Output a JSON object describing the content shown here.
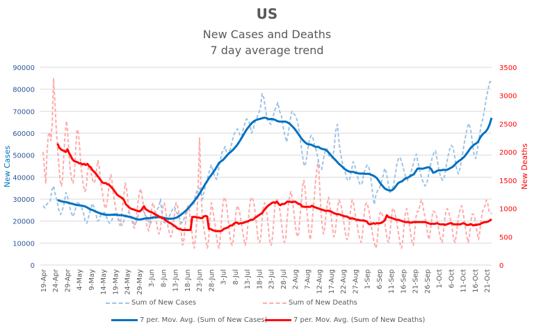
{
  "chart_data": {
    "type": "line",
    "title": "US",
    "subtitle_lines": [
      "New Cases and Deaths",
      "7 day average trend"
    ],
    "xlabel": "",
    "ylabel_left": "New Cases",
    "ylabel_right": "New Deaths",
    "ylim_left": [
      0,
      90000
    ],
    "ylim_right": [
      0,
      3500
    ],
    "yticks_left": [
      0,
      10000,
      20000,
      30000,
      40000,
      50000,
      60000,
      70000,
      80000,
      90000
    ],
    "yticks_right": [
      0,
      500,
      1000,
      1500,
      2000,
      2500,
      3000,
      3500
    ],
    "grid": true,
    "legend_position": "bottom",
    "x_start": "19-Apr",
    "x_tick_labels": [
      "19-Apr",
      "24-Apr",
      "29-Apr",
      "4-May",
      "9-May",
      "14-May",
      "19-May",
      "24-May",
      "29-May",
      "3-Jun",
      "8-Jun",
      "13-Jun",
      "18-Jun",
      "23-Jun",
      "28-Jun",
      "3-Jul",
      "8-Jul",
      "13-Jul",
      "18-Jul",
      "23-Jul",
      "28-Jul",
      "2-Aug",
      "7-Aug",
      "12-Aug",
      "17-Aug",
      "22-Aug",
      "27-Aug",
      "1-Sep",
      "6-Sep",
      "11-Sep",
      "16-Sep",
      "21-Sep",
      "26-Sep",
      "1-Oct",
      "6-Oct",
      "11-Oct",
      "16-Oct",
      "21-Oct"
    ],
    "series": [
      {
        "name": "Sum of New Cases",
        "axis": "left",
        "style": "dashed",
        "color": "#9dc3e6",
        "values": [
          27000,
          26000,
          27500,
          28500,
          29000,
          34000,
          36000,
          32000,
          29000,
          25000,
          23000,
          25000,
          28000,
          33000,
          31000,
          27000,
          24000,
          22000,
          24000,
          27500,
          29000,
          27000,
          26000,
          24000,
          20000,
          19000,
          22000,
          25000,
          28000,
          26500,
          24000,
          20000,
          20500,
          23000,
          23500,
          24000,
          22500,
          20000,
          19000,
          20000,
          22000,
          24000,
          23500,
          21000,
          19500,
          18000,
          20000,
          22500,
          23500,
          24000,
          22500,
          20500,
          18500,
          19000,
          22000,
          24000,
          25000,
          25500,
          23000,
          22000,
          20000,
          18500,
          20000,
          22500,
          23000,
          25000,
          26500,
          30000,
          22500,
          19500,
          19000,
          19500,
          22000,
          24000,
          25500,
          26500,
          24000,
          23000,
          20500,
          19000,
          20000,
          22500,
          25000,
          26000,
          27500,
          27500,
          27000,
          32000,
          34000,
          35000,
          34000,
          30000,
          34000,
          37000,
          40000,
          43000,
          45500,
          43000,
          40000,
          39000,
          43000,
          47000,
          51000,
          52500,
          54000,
          50000,
          51500,
          53000,
          56500,
          59500,
          61000,
          62000,
          60000,
          57000,
          61000,
          64000,
          66500,
          66000,
          64000,
          60000,
          62000,
          65500,
          67000,
          69000,
          71000,
          78000,
          76000,
          70500,
          66000,
          65000,
          64000,
          66500,
          70000,
          72000,
          74000,
          70000,
          68000,
          63000,
          59000,
          56000,
          60000,
          66000,
          70000,
          69000,
          68000,
          66000,
          62000,
          56000,
          50000,
          45000,
          46500,
          52000,
          57000,
          59000,
          58000,
          54000,
          52000,
          48000,
          44000,
          43500,
          48000,
          52000,
          53000,
          50000,
          49000,
          48500,
          52000,
          61000,
          64000,
          55000,
          50000,
          46000,
          44000,
          40000,
          38500,
          39000,
          43000,
          47000,
          45000,
          42000,
          38500,
          36500,
          37000,
          41500,
          44000,
          45500,
          44500,
          40000,
          33000,
          27500,
          32000,
          34000,
          35000,
          37500,
          40500,
          44000,
          42000,
          37000,
          33000,
          34000,
          36000,
          41000,
          46000,
          49000,
          48500,
          46000,
          43000,
          40000,
          38500,
          40000,
          42500,
          45000,
          48000,
          50500,
          46500,
          43000,
          40000,
          37500,
          36000,
          37000,
          41000,
          45000,
          48500,
          51000,
          52000,
          47500,
          43000,
          40000,
          38500,
          40000,
          44500,
          49000,
          52500,
          54500,
          53500,
          49000,
          44000,
          41500,
          44000,
          48500,
          53500,
          58000,
          62000,
          64500,
          62000,
          56000,
          50000,
          48500,
          53000,
          58500,
          63500,
          66500,
          71000,
          76000,
          80000,
          83500,
          83500
        ]
      },
      {
        "name": "Sum of New Deaths",
        "axis": "right",
        "style": "dashed",
        "color": "#ffaaaa",
        "values": [
          2000,
          1700,
          1450,
          2000,
          2300,
          2350,
          2200,
          2500,
          3300,
          2900,
          2450,
          2100,
          1800,
          1500,
          1400,
          1550,
          2000,
          2350,
          2550,
          2300,
          1900,
          1650,
          1500,
          1450,
          1600,
          2050,
          2400,
          2350,
          2100,
          1750,
          1550,
          1400,
          1300,
          1350,
          1650,
          1750,
          1700,
          1600,
          1500,
          1450,
          1500,
          1700,
          1850,
          1750,
          1500,
          1350,
          1200,
          1050,
          1000,
          1100,
          1300,
          1500,
          1600,
          1450,
          1250,
          1100,
          950,
          900,
          750,
          700,
          850,
          1050,
          1250,
          1450,
          1350,
          1150,
          900,
          850,
          800,
          700,
          650,
          750,
          950,
          1150,
          1300,
          1350,
          1200,
          1050,
          900,
          800,
          650,
          600,
          750,
          950,
          1100,
          1050,
          900,
          750,
          600,
          550,
          650,
          850,
          1050,
          1100,
          950,
          800,
          650,
          550,
          500,
          550,
          750,
          950,
          1100,
          1050,
          950,
          750,
          550,
          350,
          450,
          700,
          900,
          1050,
          1000,
          800,
          600,
          400,
          300,
          500,
          850,
          1450,
          2250,
          1400,
          900,
          700,
          550,
          400,
          300,
          450,
          800,
          1100,
          1000,
          850,
          700,
          500,
          350,
          300,
          500,
          850,
          1100,
          1200,
          1150,
          1000,
          800,
          550,
          400,
          350,
          450,
          700,
          950,
          1050,
          1000,
          900,
          750,
          600,
          450,
          350,
          450,
          700,
          950,
          1150,
          1200,
          1150,
          1050,
          850,
          650,
          450,
          400,
          500,
          800,
          1050,
          1100,
          1000,
          850,
          600,
          400,
          350,
          500,
          800,
          1100,
          1150,
          1150,
          1050,
          900,
          700,
          500,
          400,
          450,
          750,
          1050,
          1200,
          1300,
          1200,
          1000,
          800,
          600,
          500,
          550,
          850,
          1100,
          1400,
          1500,
          1350,
          1050,
          800,
          550,
          450,
          650,
          950,
          1200,
          1500,
          1700,
          1850,
          1450,
          1000,
          700,
          550,
          650,
          900,
          1100,
          1200,
          1050,
          850,
          650,
          500,
          550,
          800,
          1050,
          1150,
          1100,
          1000,
          850,
          700,
          550,
          450,
          500,
          750,
          1000,
          1150,
          1100,
          950,
          800,
          700,
          550,
          450,
          400,
          550,
          850,
          1050,
          1100,
          1050,
          950,
          800,
          650,
          500,
          400,
          300,
          350,
          650,
          900,
          950,
          900,
          850,
          750,
          600,
          450,
          400,
          550,
          800,
          1000,
          1000,
          900,
          800,
          650,
          500,
          350,
          300,
          450,
          750,
          950,
          1000,
          850,
          700,
          550,
          400,
          350,
          600,
          850,
          950,
          950,
          1050,
          1150,
          1100,
          950,
          850,
          700,
          550,
          450,
          600,
          800,
          950,
          950,
          900,
          850,
          700,
          550,
          450,
          400,
          550,
          800,
          950,
          1000,
          950,
          850,
          750,
          600,
          450,
          400,
          550,
          750,
          900,
          1000,
          1050,
          950,
          800,
          650,
          500,
          400,
          500,
          750,
          900,
          900,
          850,
          700,
          550,
          450,
          600,
          800,
          950,
          1000,
          1050,
          1150,
          1100,
          950,
          950,
          900
        ]
      },
      {
        "name": "7 per. Mov. Avg. (Sum of New Cases)",
        "axis": "left",
        "style": "solid",
        "color": "#0070c0",
        "start_index": 6,
        "values": [
          29500,
          29300,
          29000,
          28800,
          28700,
          28500,
          28200,
          28000,
          27800,
          27500,
          27300,
          27200,
          27100,
          26900,
          26700,
          26300,
          25800,
          25300,
          25000,
          24600,
          24200,
          23800,
          23500,
          23200,
          23000,
          22900,
          22800,
          22800,
          22900,
          22900,
          22900,
          22700,
          22700,
          22700,
          22500,
          22300,
          22100,
          21900,
          21700,
          21400,
          21000,
          20800,
          20700,
          20800,
          21000,
          21200,
          21300,
          21300,
          21400,
          21600,
          21700,
          21700,
          21800,
          21700,
          21500,
          21400,
          21200,
          21100,
          21100,
          21100,
          21300,
          21500,
          22000,
          22600,
          23300,
          24000,
          24800,
          25700,
          26700,
          27800,
          28900,
          30000,
          31200,
          32500,
          34000,
          35500,
          37000,
          38400,
          39800,
          41000,
          42300,
          43500,
          45000,
          46500,
          47200,
          47800,
          48800,
          49800,
          50800,
          51500,
          52300,
          53300,
          54300,
          55600,
          57000,
          58500,
          60000,
          61500,
          62700,
          63800,
          64800,
          65500,
          66000,
          66300,
          66500,
          66800,
          67000,
          67000,
          66600,
          66300,
          66500,
          66300,
          66000,
          65500,
          65300,
          65300,
          65300,
          65300,
          65000,
          64500,
          63700,
          62800,
          61800,
          60600,
          59300,
          58000,
          56900,
          56000,
          55300,
          54900,
          54900,
          54500,
          54000,
          53700,
          53800,
          53200,
          52800,
          52700,
          52300,
          51500,
          50500,
          49500,
          48500,
          47600,
          46600,
          45700,
          45000,
          44100,
          43400,
          42900,
          42500,
          42400,
          42400,
          42000,
          41800,
          41700,
          41600,
          41700,
          41500,
          41500,
          41500,
          41100,
          40800,
          40300,
          39600,
          38400,
          37000,
          36000,
          35000,
          34400,
          34000,
          33900,
          34100,
          34900,
          36100,
          37300,
          37800,
          38100,
          38900,
          39500,
          39800,
          40300,
          40900,
          41200,
          42600,
          43900,
          44000,
          43800,
          43900,
          44200,
          44400,
          44500,
          43600,
          42000,
          42300,
          42900,
          43100,
          43100,
          43300,
          43300,
          43300,
          43700,
          44200,
          44700,
          45500,
          46500,
          47200,
          47800,
          48500,
          49300,
          50500,
          51700,
          53000,
          54000,
          54800,
          55300,
          56000,
          57800,
          59100,
          60000,
          60700,
          62000,
          64000,
          67000
        ]
      },
      {
        "name": "7 per. Mov. Avg. (Sum of New Deaths)",
        "axis": "right",
        "style": "solid",
        "color": "#ff0000",
        "start_index": 6,
        "values": [
          2150,
          2080,
          2050,
          2030,
          2020,
          2000,
          2050,
          1980,
          1930,
          1870,
          1840,
          1830,
          1820,
          1800,
          1800,
          1780,
          1790,
          1770,
          1790,
          1750,
          1730,
          1680,
          1650,
          1620,
          1580,
          1540,
          1500,
          1460,
          1450,
          1450,
          1430,
          1420,
          1390,
          1360,
          1320,
          1280,
          1240,
          1220,
          1200,
          1180,
          1150,
          1080,
          1050,
          1020,
          1000,
          990,
          980,
          970,
          960,
          950,
          960,
          1000,
          1040,
          990,
          970,
          950,
          940,
          930,
          910,
          890,
          880,
          860,
          850,
          830,
          820,
          790,
          770,
          750,
          740,
          720,
          700,
          680,
          650,
          640,
          630,
          620,
          620,
          620,
          620,
          620,
          620,
          850,
          850,
          850,
          840,
          840,
          830,
          830,
          860,
          870,
          860,
          640,
          640,
          620,
          610,
          600,
          600,
          600,
          600,
          610,
          640,
          650,
          660,
          680,
          700,
          700,
          730,
          750,
          750,
          730,
          740,
          740,
          750,
          760,
          770,
          780,
          800,
          800,
          810,
          840,
          860,
          880,
          900,
          920,
          960,
          1000,
          1030,
          1060,
          1080,
          1100,
          1110,
          1100,
          1120,
          1080,
          1060,
          1080,
          1080,
          1090,
          1120,
          1120,
          1120,
          1110,
          1120,
          1120,
          1100,
          1080,
          1080,
          1040,
          1030,
          1030,
          1030,
          1030,
          1030,
          1050,
          1030,
          1020,
          1010,
          1000,
          990,
          980,
          970,
          960,
          960,
          960,
          950,
          940,
          920,
          910,
          900,
          900,
          890,
          880,
          870,
          860,
          860,
          840,
          820,
          830,
          820,
          810,
          800,
          800,
          790,
          790,
          790,
          780,
          770,
          730,
          720,
          730,
          740,
          730,
          740,
          740,
          740,
          750,
          770,
          800,
          880,
          850,
          840,
          830,
          820,
          810,
          800,
          800,
          790,
          780,
          770,
          760,
          760,
          760,
          750,
          750,
          760,
          760,
          760,
          760,
          760,
          760,
          760,
          760,
          750,
          740,
          730,
          730,
          730,
          730,
          740,
          730,
          720,
          720,
          720,
          710,
          720,
          730,
          740,
          740,
          720,
          720,
          720,
          720,
          720,
          730,
          740,
          730,
          710,
          710,
          720,
          720,
          700,
          710,
          710,
          720,
          720,
          740,
          750,
          760,
          760,
          770,
          790,
          810
        ]
      }
    ]
  }
}
